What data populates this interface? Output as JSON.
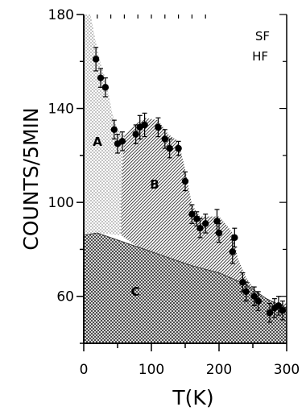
{
  "chart_data": {
    "type": "scatter",
    "title": "",
    "xlabel": "T(K)",
    "ylabel": "COUNTS/5MIN",
    "xlim": [
      0,
      300
    ],
    "ylim": [
      40,
      180
    ],
    "x_ticks": [
      0,
      100,
      200,
      300
    ],
    "x_tick_labels": [
      "0",
      "100",
      "200",
      "300"
    ],
    "y_ticks": [
      60,
      100,
      140,
      180
    ],
    "y_tick_labels": [
      "60",
      "100",
      "140",
      "180"
    ],
    "grid": false,
    "legend": {
      "placement": "top-right",
      "entries": [
        "SF",
        "HF"
      ]
    },
    "regions": [
      {
        "label": "A",
        "fill": "light dotted (gray)"
      },
      {
        "label": "B",
        "fill": "diagonal hatching"
      },
      {
        "label": "C",
        "fill": "cross-hatching"
      }
    ],
    "series": [
      {
        "points": [
          {
            "x": 18,
            "y": 161,
            "err": 5
          },
          {
            "x": 25,
            "y": 153,
            "err": 4
          },
          {
            "x": 32,
            "y": 149,
            "err": 4
          },
          {
            "x": 45,
            "y": 131,
            "err": 4
          },
          {
            "x": 50,
            "y": 125,
            "err": 4
          },
          {
            "x": 57,
            "y": 126,
            "err": 4
          },
          {
            "x": 77,
            "y": 129,
            "err": 4
          },
          {
            "x": 83,
            "y": 132,
            "err": 5
          },
          {
            "x": 90,
            "y": 133,
            "err": 5
          },
          {
            "x": 110,
            "y": 132,
            "err": 4
          },
          {
            "x": 120,
            "y": 127,
            "err": 4
          },
          {
            "x": 127,
            "y": 123,
            "err": 4
          },
          {
            "x": 140,
            "y": 123,
            "err": 3
          },
          {
            "x": 150,
            "y": 109,
            "err": 4
          },
          {
            "x": 160,
            "y": 95,
            "err": 4
          },
          {
            "x": 167,
            "y": 93,
            "err": 3
          },
          {
            "x": 172,
            "y": 89,
            "err": 4
          },
          {
            "x": 180,
            "y": 91,
            "err": 4
          },
          {
            "x": 197,
            "y": 92,
            "err": 5
          },
          {
            "x": 200,
            "y": 87,
            "err": 4
          },
          {
            "x": 220,
            "y": 79,
            "err": 5
          },
          {
            "x": 223,
            "y": 85,
            "err": 4
          },
          {
            "x": 235,
            "y": 66,
            "err": 4
          },
          {
            "x": 240,
            "y": 62,
            "err": 4
          },
          {
            "x": 252,
            "y": 60,
            "err": 4
          },
          {
            "x": 258,
            "y": 58,
            "err": 4
          },
          {
            "x": 275,
            "y": 53,
            "err": 4
          },
          {
            "x": 282,
            "y": 55,
            "err": 4
          },
          {
            "x": 288,
            "y": 56,
            "err": 4
          },
          {
            "x": 294,
            "y": 54,
            "err": 4
          }
        ]
      }
    ]
  }
}
